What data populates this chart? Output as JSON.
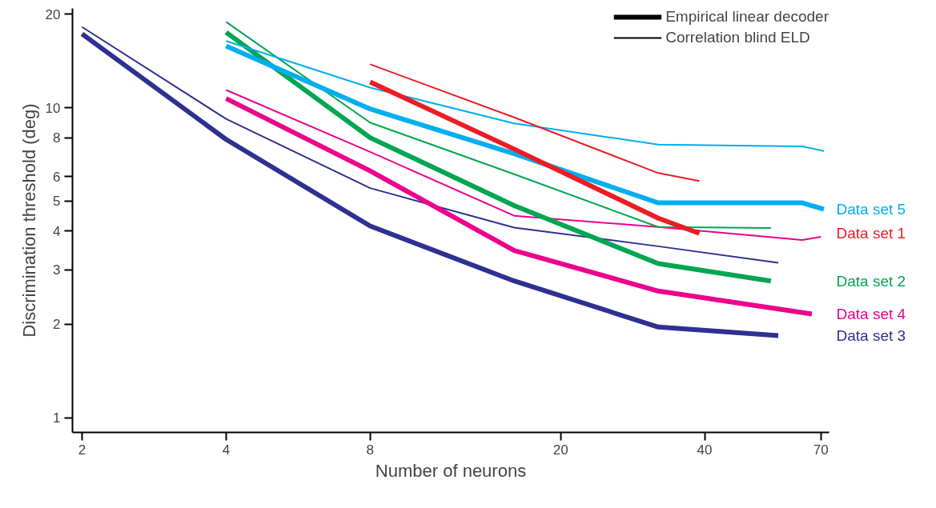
{
  "chart_data": {
    "type": "line",
    "xlabel": "Number of neurons",
    "ylabel": "Discrimination threshold (deg)",
    "log": "xy",
    "xlim": [
      1.91,
      72.8
    ],
    "ylim": [
      0.896,
      20.9
    ],
    "xticks": [
      2,
      4,
      8,
      20,
      40,
      70
    ],
    "yticks": [
      1,
      2,
      3,
      4,
      5,
      6,
      8,
      10,
      20
    ],
    "grid": false,
    "legend": "right",
    "annotations": [
      "Empirical linear decoder",
      "Correlation blind ELD"
    ],
    "series": [
      {
        "name": "Data set 3",
        "color": "#2e3192",
        "x": [
          2,
          4,
          8,
          16,
          32,
          57
        ],
        "values": [
          17.3,
          7.9,
          4.15,
          2.76,
          1.96,
          1.84
        ]
      },
      {
        "color": "#2e3192",
        "x": [
          2,
          4,
          8,
          16,
          32,
          57
        ],
        "values": [
          18.2,
          9.2,
          5.5,
          4.1,
          3.57,
          3.16
        ]
      },
      {
        "name": "Data set 4",
        "color": "#ec008c",
        "x": [
          4,
          8,
          16,
          32,
          67
        ],
        "values": [
          10.7,
          6.25,
          3.46,
          2.56,
          2.16
        ]
      },
      {
        "color": "#ec008c",
        "x": [
          4,
          8,
          16,
          32,
          64,
          70
        ],
        "values": [
          11.4,
          7.2,
          4.48,
          4.12,
          3.74,
          3.83
        ]
      },
      {
        "name": "Data set 2",
        "color": "#00a651",
        "x": [
          4,
          8,
          16,
          32,
          55
        ],
        "values": [
          17.5,
          8.0,
          4.83,
          3.14,
          2.76
        ]
      },
      {
        "color": "#00a651",
        "x": [
          4,
          8,
          16,
          32,
          55
        ],
        "values": [
          18.9,
          8.95,
          6.1,
          4.12,
          4.09
        ]
      },
      {
        "name": "Data set 5",
        "color": "#00aeef",
        "x": [
          4,
          8,
          16,
          32,
          64,
          71
        ],
        "values": [
          15.8,
          9.9,
          7.1,
          4.93,
          4.93,
          4.7
        ]
      },
      {
        "color": "#00aeef",
        "x": [
          4,
          8,
          16,
          32,
          64,
          71
        ],
        "values": [
          16.4,
          11.6,
          8.9,
          7.6,
          7.5,
          7.25
        ]
      },
      {
        "name": "Data set 1",
        "color": "#ed1c24",
        "x": [
          8,
          16,
          32,
          39
        ],
        "values": [
          12.1,
          7.35,
          4.4,
          3.93
        ]
      },
      {
        "color": "#ed1c24",
        "x": [
          8,
          16,
          32,
          39
        ],
        "values": [
          13.8,
          9.3,
          6.15,
          5.8
        ]
      }
    ]
  }
}
